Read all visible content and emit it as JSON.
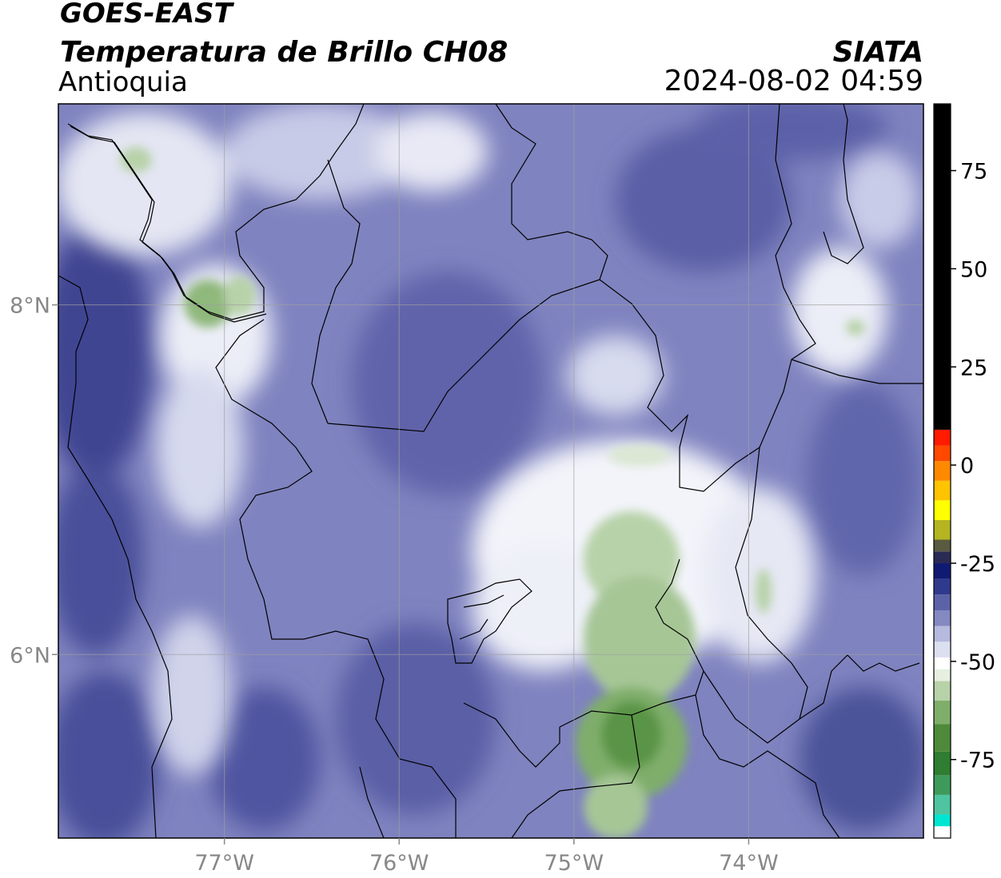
{
  "header": {
    "satellite": "GOES-EAST",
    "product": "Temperatura de Brillo CH08",
    "region": "Antioquia",
    "organization": "SIATA",
    "datetime": "2024-08-02 04:59"
  },
  "map": {
    "lon_range": [
      -77.95,
      -73.0
    ],
    "lat_range": [
      4.95,
      9.15
    ],
    "lon_ticks": [
      {
        "value": -77,
        "label": "77°W"
      },
      {
        "value": -76,
        "label": "76°W"
      },
      {
        "value": -75,
        "label": "75°W"
      },
      {
        "value": -74,
        "label": "74°W"
      }
    ],
    "lat_ticks": [
      {
        "value": 8,
        "label": "8°N"
      },
      {
        "value": 6,
        "label": "6°N"
      }
    ],
    "colors": {
      "deep_cloud": "#3b3f92",
      "mid_cloud": "#8589c2",
      "light_cloud": "#eceef7",
      "green_core": "#4e8a3a",
      "light_green": "#b7d2a8",
      "border_line": "#000000",
      "gridline": "#a0a0a0"
    }
  },
  "colorbar": {
    "range": [
      -95,
      92
    ],
    "ticks": [
      {
        "value": 75,
        "label": "75"
      },
      {
        "value": 50,
        "label": "50"
      },
      {
        "value": 25,
        "label": "25"
      },
      {
        "value": 0,
        "label": "0"
      },
      {
        "value": -25,
        "label": "-25"
      },
      {
        "value": -50,
        "label": "-50"
      },
      {
        "value": -75,
        "label": "-75"
      }
    ],
    "segments": [
      {
        "from": -95,
        "to": -92,
        "color": "#ffffff"
      },
      {
        "from": -92,
        "to": -89,
        "color": "#00e5d2"
      },
      {
        "from": -89,
        "to": -84,
        "color": "#4fc4a0"
      },
      {
        "from": -84,
        "to": -79,
        "color": "#3e9a5a"
      },
      {
        "from": -79,
        "to": -73,
        "color": "#2f7d30"
      },
      {
        "from": -73,
        "to": -66,
        "color": "#4e8a3a"
      },
      {
        "from": -66,
        "to": -60,
        "color": "#7fae6a"
      },
      {
        "from": -60,
        "to": -55,
        "color": "#b7d2a8"
      },
      {
        "from": -55,
        "to": -52,
        "color": "#e6efe0"
      },
      {
        "from": -52,
        "to": -49,
        "color": "#ffffff"
      },
      {
        "from": -49,
        "to": -45,
        "color": "#dcdff0"
      },
      {
        "from": -45,
        "to": -41,
        "color": "#b6badf"
      },
      {
        "from": -41,
        "to": -37,
        "color": "#8589c2"
      },
      {
        "from": -37,
        "to": -33,
        "color": "#5c62a8"
      },
      {
        "from": -33,
        "to": -29,
        "color": "#303a8c"
      },
      {
        "from": -29,
        "to": -25,
        "color": "#111a72"
      },
      {
        "from": -25,
        "to": -22,
        "color": "#2a2a55"
      },
      {
        "from": -22,
        "to": -19,
        "color": "#5a5a40"
      },
      {
        "from": -19,
        "to": -14,
        "color": "#b5b522"
      },
      {
        "from": -14,
        "to": -9,
        "color": "#ffff00"
      },
      {
        "from": -9,
        "to": -4,
        "color": "#ffc400"
      },
      {
        "from": -4,
        "to": 1,
        "color": "#ff8a00"
      },
      {
        "from": 1,
        "to": 5,
        "color": "#ff4800"
      },
      {
        "from": 5,
        "to": 9,
        "color": "#ff1a00"
      },
      {
        "from": 9,
        "to": 92,
        "color": "#000000"
      }
    ]
  }
}
